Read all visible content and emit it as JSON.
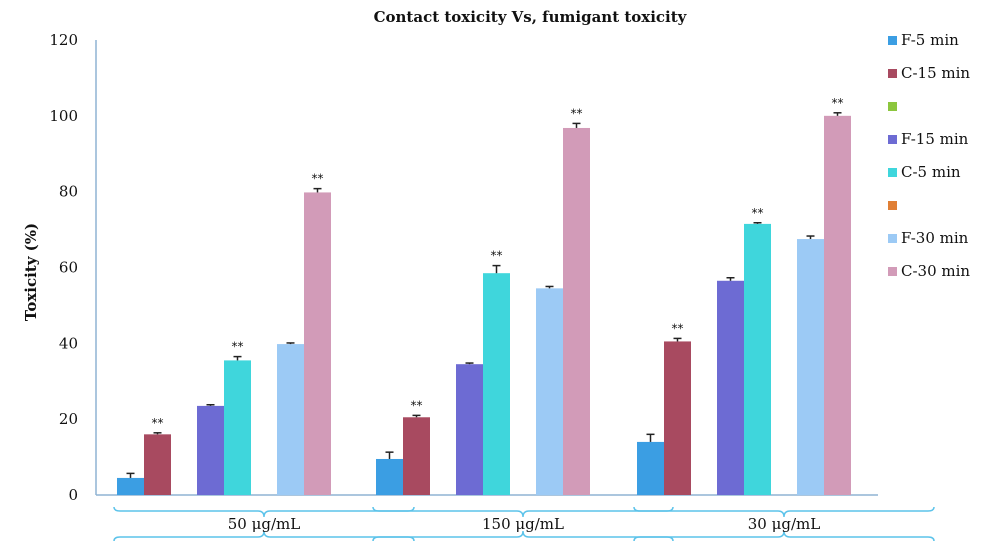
{
  "chart_data": {
    "type": "bar",
    "title": "Contact toxicity Vs, fumigant toxicity",
    "ylabel": "Toxicity (%)",
    "xlabel": "",
    "ylim": [
      0,
      120
    ],
    "yticks": [
      0,
      20,
      40,
      60,
      80,
      100,
      120
    ],
    "categories": [
      "50 μg/mL",
      "150 μg/mL",
      "30 μg/mL"
    ],
    "legend_position": "right",
    "grid": false,
    "series": [
      {
        "name": "F-5 min",
        "color": "#3b9ee3",
        "values": [
          4.5,
          9.5,
          14.0
        ],
        "errors": [
          1.2,
          1.8,
          2.0
        ],
        "significance": [
          "",
          "",
          ""
        ]
      },
      {
        "name": "C-15 min",
        "color": "#a84a60",
        "values": [
          16.0,
          20.5,
          40.5
        ],
        "errors": [
          0.4,
          0.5,
          0.8
        ],
        "significance": [
          "**",
          "**",
          "**"
        ]
      },
      {
        "name": "",
        "color": "#8cc63e",
        "values": [
          0,
          0,
          0
        ],
        "errors": [
          0,
          0,
          0
        ],
        "significance": [
          "",
          "",
          ""
        ],
        "legend_only": true
      },
      {
        "name": "F-15 min",
        "color": "#6d6bd3",
        "values": [
          23.5,
          34.5,
          56.5
        ],
        "errors": [
          0.3,
          0.3,
          0.8
        ],
        "significance": [
          "",
          "",
          ""
        ]
      },
      {
        "name": "C-5 min",
        "color": "#3fd6dc",
        "values": [
          35.5,
          58.5,
          71.5
        ],
        "errors": [
          1.0,
          2.0,
          0.3
        ],
        "significance": [
          "**",
          "**",
          "**"
        ]
      },
      {
        "name": "",
        "color": "#e07f35",
        "values": [
          0,
          0,
          0
        ],
        "errors": [
          0,
          0,
          0
        ],
        "significance": [
          "",
          "",
          ""
        ],
        "legend_only": true
      },
      {
        "name": "F-30 min",
        "color": "#9ccaf5",
        "values": [
          39.8,
          54.5,
          67.5
        ],
        "errors": [
          0.3,
          0.5,
          0.8
        ],
        "significance": [
          "",
          "",
          ""
        ]
      },
      {
        "name": "C-30 min",
        "color": "#d29bb8",
        "values": [
          79.8,
          96.8,
          100.0
        ],
        "errors": [
          1.0,
          1.2,
          0.8
        ],
        "significance": [
          "**",
          "**",
          "**"
        ]
      }
    ]
  }
}
